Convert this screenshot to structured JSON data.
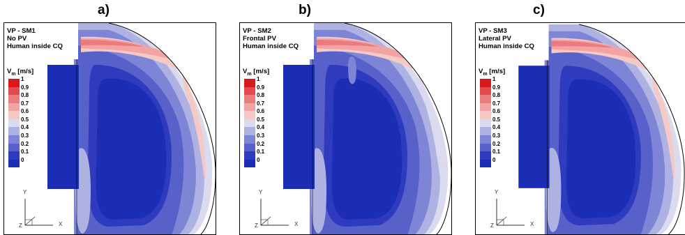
{
  "panels": [
    {
      "letter": "a)",
      "caption": [
        "VP - SM1",
        "No PV",
        "Human inside CQ"
      ]
    },
    {
      "letter": "b)",
      "caption": [
        "VP - SM2",
        "Frontal PV",
        "Human inside CQ"
      ]
    },
    {
      "letter": "c)",
      "caption": [
        "VP - SM3",
        "Lateral PV",
        "Human inside CQ"
      ]
    }
  ],
  "legend": {
    "title_main": "V",
    "title_sub": "m",
    "title_unit": " [m/s]",
    "levels": [
      {
        "label": "1",
        "color": "#d7191c"
      },
      {
        "label": "0.9",
        "color": "#e34a4e"
      },
      {
        "label": "0.8",
        "color": "#ec7b7f"
      },
      {
        "label": "0.7",
        "color": "#f2a3a3"
      },
      {
        "label": "0.6",
        "color": "#f7c9c5"
      },
      {
        "label": "0.5",
        "color": "#dadbee"
      },
      {
        "label": "0.4",
        "color": "#aeb2e3"
      },
      {
        "label": "0.3",
        "color": "#7f85d6"
      },
      {
        "label": "0.2",
        "color": "#5860c9"
      },
      {
        "label": "0.1",
        "color": "#2f3bbf"
      },
      {
        "label": "0",
        "color": "#1c2db5"
      }
    ]
  },
  "axes": {
    "y_label": "Y",
    "x_label": "X",
    "z_label": "Z"
  }
}
